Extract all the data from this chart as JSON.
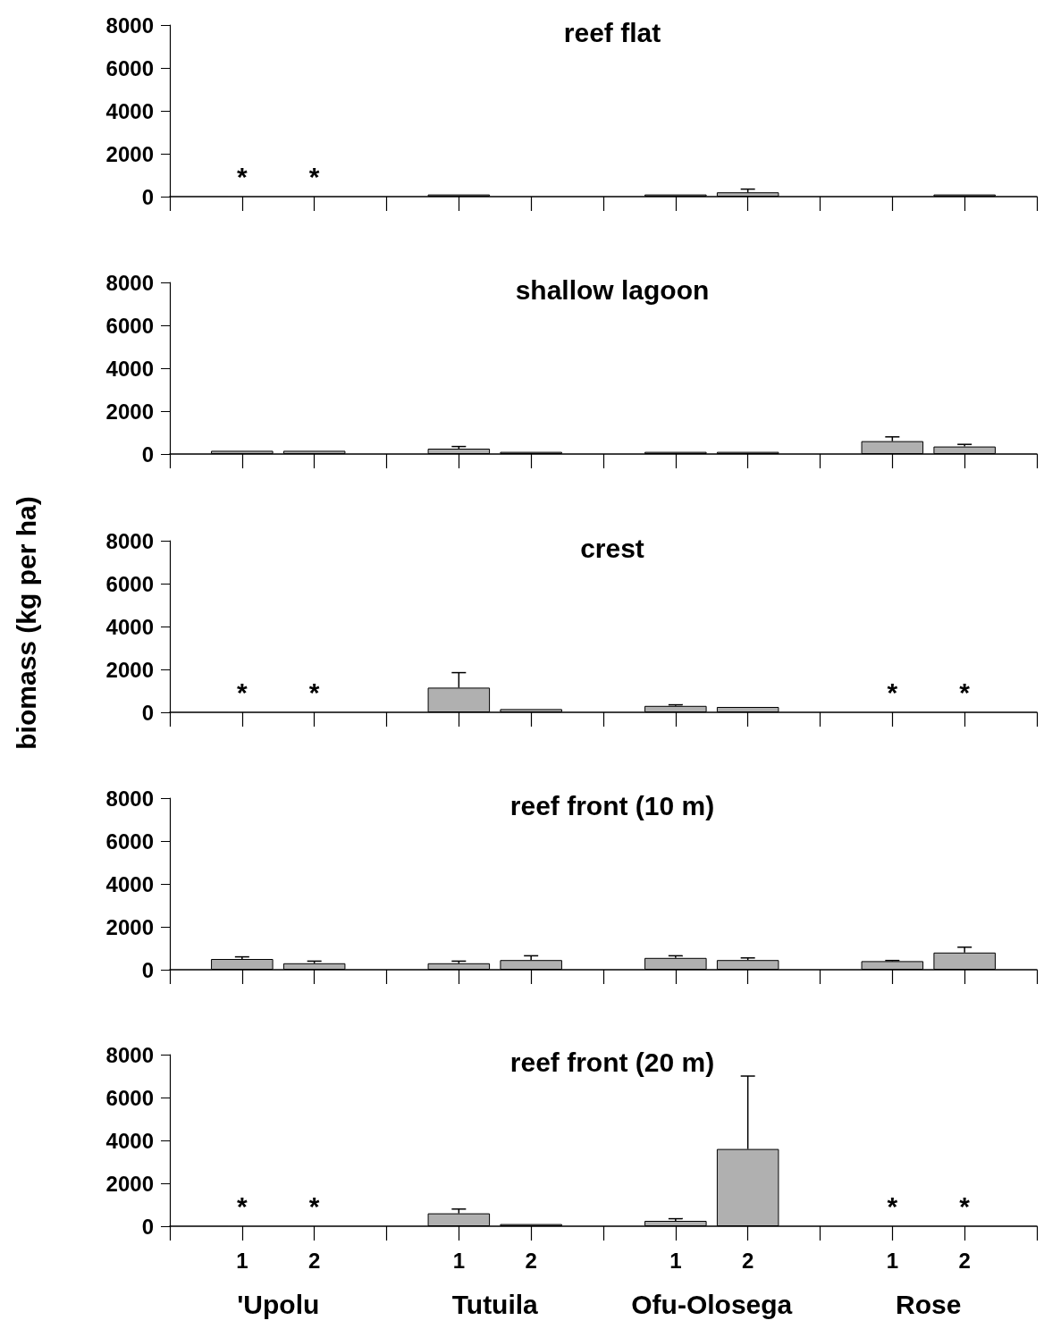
{
  "chart_data": [
    {
      "type": "bar",
      "title": "reef flat",
      "categories": [
        null,
        "1",
        "2",
        null,
        "1",
        "2",
        null,
        "1",
        "2",
        null,
        "1",
        "2",
        null
      ],
      "values": [
        null,
        null,
        null,
        null,
        100,
        null,
        null,
        100,
        200,
        null,
        null,
        100,
        null
      ],
      "color": "#b0b0b0",
      "errors": [
        null,
        null,
        null,
        null,
        null,
        null,
        null,
        null,
        [
          200,
          350
        ],
        null,
        null,
        null,
        null
      ],
      "value_labels": [
        null,
        "*",
        "*",
        null,
        null,
        null,
        null,
        null,
        null,
        null,
        null,
        null,
        null
      ],
      "ylim": [
        0,
        8000
      ],
      "yticks": [
        0,
        2000,
        4000,
        6000,
        8000
      ],
      "tick_labels": "y"
    },
    {
      "type": "bar",
      "title": "shallow lagoon",
      "categories": [
        null,
        "1",
        "2",
        null,
        "1",
        "2",
        null,
        "1",
        "2",
        null,
        "1",
        "2",
        null
      ],
      "values": [
        null,
        150,
        150,
        null,
        250,
        100,
        null,
        100,
        100,
        null,
        600,
        350,
        null
      ],
      "color": "#b0b0b0",
      "errors": [
        null,
        null,
        null,
        null,
        [
          250,
          350
        ],
        null,
        null,
        null,
        null,
        null,
        [
          600,
          800
        ],
        [
          350,
          450
        ],
        null
      ],
      "ylim": [
        0,
        8000
      ],
      "yticks": [
        0,
        2000,
        4000,
        6000,
        8000
      ],
      "tick_labels": "y"
    },
    {
      "type": "bar",
      "title": "crest",
      "ylabel": "biomass (kg per ha)",
      "categories": [
        null,
        "1",
        "2",
        null,
        "1",
        "2",
        null,
        "1",
        "2",
        null,
        "1",
        "2",
        null
      ],
      "values": [
        null,
        null,
        null,
        null,
        1150,
        150,
        null,
        300,
        250,
        null,
        null,
        null,
        null
      ],
      "color": "#b0b0b0",
      "errors": [
        null,
        null,
        null,
        null,
        [
          1150,
          1850
        ],
        null,
        null,
        [
          300,
          350
        ],
        null,
        null,
        null,
        null,
        null
      ],
      "value_labels": [
        null,
        "*",
        "*",
        null,
        null,
        null,
        null,
        null,
        null,
        null,
        "*",
        "*",
        null
      ],
      "ylim": [
        0,
        8000
      ],
      "yticks": [
        0,
        2000,
        4000,
        6000,
        8000
      ],
      "tick_labels": "y"
    },
    {
      "type": "bar",
      "title": "reef front (10 m)",
      "categories": [
        null,
        "1",
        "2",
        null,
        "1",
        "2",
        null,
        "1",
        "2",
        null,
        "1",
        "2",
        null
      ],
      "values": [
        null,
        500,
        300,
        null,
        300,
        450,
        null,
        550,
        450,
        null,
        400,
        800,
        null
      ],
      "color": "#b0b0b0",
      "errors": [
        null,
        [
          500,
          600
        ],
        [
          300,
          400
        ],
        null,
        [
          300,
          400
        ],
        [
          450,
          650
        ],
        null,
        [
          550,
          650
        ],
        [
          450,
          550
        ],
        null,
        [
          400,
          430
        ],
        [
          800,
          1050
        ],
        null
      ],
      "ylim": [
        0,
        8000
      ],
      "yticks": [
        0,
        2000,
        4000,
        6000,
        8000
      ],
      "tick_labels": "y"
    },
    {
      "type": "bar",
      "title": "reef front (20 m)",
      "categories": [
        null,
        "1",
        "2",
        null,
        "1",
        "2",
        null,
        "1",
        "2",
        null,
        "1",
        "2",
        null
      ],
      "values": [
        null,
        null,
        null,
        null,
        600,
        100,
        null,
        250,
        3600,
        null,
        null,
        null,
        null
      ],
      "color": "#b0b0b0",
      "errors": [
        null,
        null,
        null,
        null,
        [
          600,
          800
        ],
        null,
        null,
        [
          250,
          350
        ],
        [
          3600,
          7000
        ],
        null,
        null,
        null,
        null
      ],
      "value_labels": [
        null,
        "*",
        "*",
        null,
        null,
        null,
        null,
        null,
        null,
        null,
        "*",
        "*",
        null
      ],
      "ylim": [
        0,
        8000
      ],
      "yticks": [
        0,
        2000,
        4000,
        6000,
        8000
      ],
      "annotations": [
        "'Upolu",
        "Tutuila",
        "Ofu-Olosega",
        "Rose"
      ]
    }
  ]
}
